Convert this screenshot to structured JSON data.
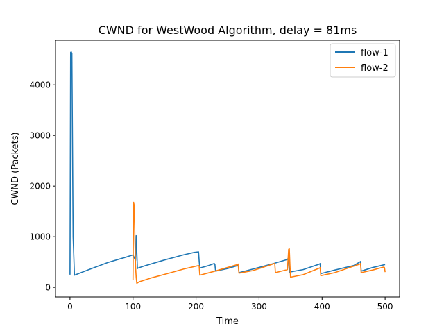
{
  "chart_data": {
    "type": "line",
    "title": "CWND for WestWood Algorithm, delay = 81ms",
    "xlabel": "Time",
    "ylabel": "CWND (Packets)",
    "xlim": [
      -23,
      523
    ],
    "ylim": [
      -190,
      4880
    ],
    "xticks": [
      0,
      100,
      200,
      300,
      400,
      500
    ],
    "yticks": [
      0,
      1000,
      2000,
      3000,
      4000
    ],
    "xtick_labels": [
      "0",
      "100",
      "200",
      "300",
      "400",
      "500"
    ],
    "ytick_labels": [
      "0",
      "1000",
      "2000",
      "3000",
      "4000"
    ],
    "grid": false,
    "legend_position": "top-right",
    "series": [
      {
        "name": "flow-1",
        "color": "#1f77b4",
        "x": [
          0,
          1,
          2,
          3,
          5,
          7,
          30,
          60,
          90,
          100,
          104,
          105,
          106,
          107,
          108,
          120,
          150,
          180,
          197,
          204,
          205,
          206,
          220,
          229,
          230,
          231,
          250,
          266,
          267,
          268,
          290,
          320,
          345,
          346,
          347,
          348,
          370,
          396,
          397,
          398,
          420,
          450,
          460,
          461,
          462,
          480,
          500
        ],
        "y": [
          250,
          4640,
          4650,
          4620,
          1000,
          240,
          350,
          490,
          600,
          640,
          530,
          1020,
          700,
          370,
          380,
          430,
          540,
          640,
          690,
          700,
          520,
          380,
          430,
          470,
          450,
          320,
          370,
          430,
          450,
          290,
          360,
          460,
          550,
          570,
          540,
          300,
          350,
          460,
          470,
          270,
          340,
          430,
          500,
          510,
          320,
          390,
          450
        ]
      },
      {
        "name": "flow-2",
        "color": "#ff7f0e",
        "x": [
          100,
          101,
          102,
          103,
          104,
          105,
          106,
          110,
          130,
          160,
          180,
          204,
          205,
          206,
          230,
          266,
          267,
          268,
          290,
          320,
          324,
          325,
          326,
          345,
          347,
          348,
          349,
          350,
          370,
          396,
          397,
          398,
          420,
          460,
          461,
          462,
          480,
          498,
          499,
          500
        ],
        "y": [
          150,
          1680,
          1600,
          900,
          400,
          200,
          80,
          110,
          190,
          290,
          360,
          430,
          420,
          240,
          320,
          450,
          460,
          280,
          330,
          450,
          470,
          460,
          290,
          350,
          750,
          760,
          450,
          200,
          250,
          380,
          390,
          230,
          290,
          460,
          470,
          290,
          340,
          400,
          390,
          300
        ]
      }
    ]
  }
}
